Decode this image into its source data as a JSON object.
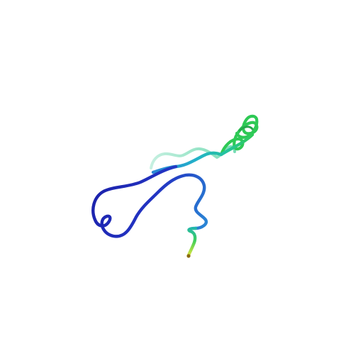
{
  "image": {
    "subject": "protein-backbone-cartoon",
    "background_color": "#ffffff",
    "coloring": "rainbow-n-to-c",
    "palette": {
      "n_terminus": "#1a1aa6",
      "blue": "#2a3fcf",
      "sky": "#2a86d6",
      "teal": "#25c2a0",
      "green": "#2fc94a",
      "light_green": "#7be0b0",
      "yellow": "#e8e63a",
      "c_terminus_cap": "#8a6a10"
    }
  }
}
